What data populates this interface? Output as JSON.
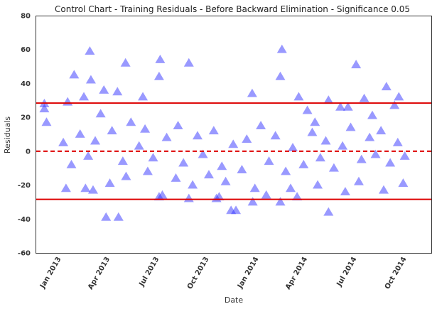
{
  "chart_data": {
    "type": "scatter",
    "title": "Control Chart - Training Residuals - Before Backward Elimination - Significance 0.05",
    "xlabel": "Date",
    "ylabel": "Residuals",
    "xlim": [
      "2012-11-16",
      "2014-11-16"
    ],
    "ylim": [
      -60,
      80
    ],
    "y_ticks": [
      -60,
      -40,
      -20,
      0,
      20,
      40,
      60,
      80
    ],
    "x_ticks": [
      {
        "date": "2013-01-01",
        "label": "Jan 2013"
      },
      {
        "date": "2013-04-01",
        "label": "Apr 2013"
      },
      {
        "date": "2013-07-01",
        "label": "Jul 2013"
      },
      {
        "date": "2013-10-01",
        "label": "Oct 2013"
      },
      {
        "date": "2014-01-01",
        "label": "Jan 2014"
      },
      {
        "date": "2014-04-01",
        "label": "Apr 2014"
      },
      {
        "date": "2014-07-01",
        "label": "Jul 2014"
      },
      {
        "date": "2014-10-01",
        "label": "Oct 2014"
      }
    ],
    "control_limits": {
      "upper": 28.4,
      "lower": -28.4,
      "center": 0
    },
    "colors": {
      "points": "#3333ff",
      "limits": "#dd0000",
      "center": "#dd0000"
    },
    "marker": "triangle-up",
    "grid": false,
    "series": [
      {
        "values": [
          {
            "x": "2012-12-01",
            "y": 28
          },
          {
            "x": "2012-12-01",
            "y": 25
          },
          {
            "x": "2012-12-05",
            "y": 17
          },
          {
            "x": "2013-01-13",
            "y": 29
          },
          {
            "x": "2013-01-25",
            "y": 45
          },
          {
            "x": "2013-02-12",
            "y": 32
          },
          {
            "x": "2013-02-23",
            "y": 59
          },
          {
            "x": "2013-02-25",
            "y": 42
          },
          {
            "x": "2013-03-21",
            "y": 36
          },
          {
            "x": "2013-03-25",
            "y": -39
          },
          {
            "x": "2013-04-17",
            "y": -39
          },
          {
            "x": "2013-04-15",
            "y": 35
          },
          {
            "x": "2013-04-30",
            "y": 52
          },
          {
            "x": "2013-06-01",
            "y": 32
          },
          {
            "x": "2013-07-01",
            "y": 44
          },
          {
            "x": "2013-07-03",
            "y": 54
          },
          {
            "x": "2013-07-01",
            "y": -27
          },
          {
            "x": "2013-07-07",
            "y": -26
          },
          {
            "x": "2013-08-25",
            "y": 52
          },
          {
            "x": "2013-08-25",
            "y": -28
          },
          {
            "x": "2013-10-15",
            "y": -28
          },
          {
            "x": "2013-10-20",
            "y": -27
          },
          {
            "x": "2013-11-11",
            "y": -35
          },
          {
            "x": "2013-11-20",
            "y": -35
          },
          {
            "x": "2013-12-20",
            "y": 34
          },
          {
            "x": "2013-12-21",
            "y": -30
          },
          {
            "x": "2013-12-25",
            "y": -22
          },
          {
            "x": "2014-02-10",
            "y": 44
          },
          {
            "x": "2014-02-13",
            "y": 60
          },
          {
            "x": "2014-02-10",
            "y": -30
          },
          {
            "x": "2014-03-16",
            "y": 32
          },
          {
            "x": "2014-03-13",
            "y": -27
          },
          {
            "x": "2014-04-01",
            "y": 24
          },
          {
            "x": "2014-04-15",
            "y": 17
          },
          {
            "x": "2014-05-10",
            "y": 30
          },
          {
            "x": "2014-05-10",
            "y": -36
          },
          {
            "x": "2014-06-01",
            "y": 26
          },
          {
            "x": "2014-06-15",
            "y": 26
          },
          {
            "x": "2014-06-30",
            "y": 51
          },
          {
            "x": "2014-07-15",
            "y": 31
          },
          {
            "x": "2014-07-30",
            "y": 21
          },
          {
            "x": "2014-08-25",
            "y": 38
          },
          {
            "x": "2014-09-09",
            "y": 27
          },
          {
            "x": "2014-09-17",
            "y": 32
          },
          {
            "x": "2013-01-10",
            "y": -22
          },
          {
            "x": "2013-02-15",
            "y": -22
          },
          {
            "x": "2013-03-01",
            "y": -23
          },
          {
            "x": "2013-04-01",
            "y": -19
          },
          {
            "x": "2013-05-01",
            "y": -15
          },
          {
            "x": "2013-06-10",
            "y": -12
          },
          {
            "x": "2013-08-01",
            "y": -16
          },
          {
            "x": "2013-09-01",
            "y": -20
          },
          {
            "x": "2013-10-01",
            "y": -14
          },
          {
            "x": "2013-11-01",
            "y": -18
          },
          {
            "x": "2014-01-15",
            "y": -26
          },
          {
            "x": "2014-03-01",
            "y": -22
          },
          {
            "x": "2014-04-20",
            "y": -20
          },
          {
            "x": "2014-06-10",
            "y": -24
          },
          {
            "x": "2014-07-05",
            "y": -18
          },
          {
            "x": "2014-08-20",
            "y": -23
          },
          {
            "x": "2014-09-25",
            "y": -19
          },
          {
            "x": "2013-01-05",
            "y": 5
          },
          {
            "x": "2013-01-20",
            "y": -8
          },
          {
            "x": "2013-02-05",
            "y": 10
          },
          {
            "x": "2013-02-20",
            "y": -3
          },
          {
            "x": "2013-03-05",
            "y": 6
          },
          {
            "x": "2013-03-15",
            "y": 22
          },
          {
            "x": "2013-04-05",
            "y": 12
          },
          {
            "x": "2013-04-25",
            "y": -6
          },
          {
            "x": "2013-05-10",
            "y": 17
          },
          {
            "x": "2013-05-25",
            "y": 3
          },
          {
            "x": "2013-06-05",
            "y": 13
          },
          {
            "x": "2013-06-20",
            "y": -4
          },
          {
            "x": "2013-07-15",
            "y": 8
          },
          {
            "x": "2013-08-05",
            "y": 15
          },
          {
            "x": "2013-08-15",
            "y": -7
          },
          {
            "x": "2013-09-10",
            "y": 9
          },
          {
            "x": "2013-09-20",
            "y": -2
          },
          {
            "x": "2013-10-10",
            "y": 12
          },
          {
            "x": "2013-10-25",
            "y": -9
          },
          {
            "x": "2013-11-15",
            "y": 4
          },
          {
            "x": "2013-12-01",
            "y": -11
          },
          {
            "x": "2013-12-10",
            "y": 7
          },
          {
            "x": "2014-01-05",
            "y": 15
          },
          {
            "x": "2014-01-20",
            "y": -6
          },
          {
            "x": "2014-02-01",
            "y": 9
          },
          {
            "x": "2014-02-20",
            "y": -12
          },
          {
            "x": "2014-03-05",
            "y": 2
          },
          {
            "x": "2014-03-25",
            "y": -8
          },
          {
            "x": "2014-04-10",
            "y": 11
          },
          {
            "x": "2014-04-25",
            "y": -4
          },
          {
            "x": "2014-05-05",
            "y": 6
          },
          {
            "x": "2014-05-20",
            "y": -10
          },
          {
            "x": "2014-06-05",
            "y": 3
          },
          {
            "x": "2014-06-20",
            "y": 14
          },
          {
            "x": "2014-07-10",
            "y": -5
          },
          {
            "x": "2014-07-25",
            "y": 8
          },
          {
            "x": "2014-08-05",
            "y": -2
          },
          {
            "x": "2014-08-15",
            "y": 12
          },
          {
            "x": "2014-09-01",
            "y": -7
          },
          {
            "x": "2014-09-15",
            "y": 5
          },
          {
            "x": "2014-09-28",
            "y": -3
          }
        ]
      }
    ]
  }
}
